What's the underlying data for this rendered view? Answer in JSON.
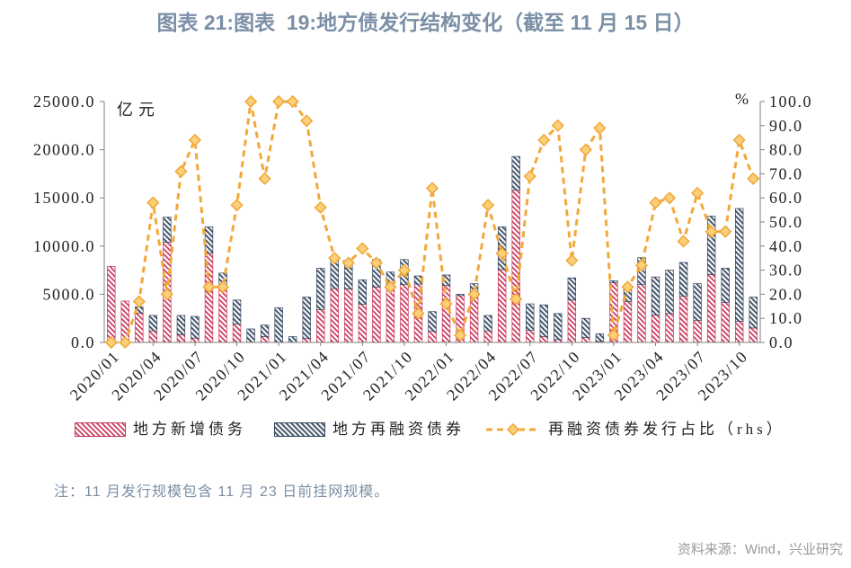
{
  "title": "图表 21:图表  19:地方债发行结构变化（截至 11 月 15 日）",
  "note": "注：11 月发行规模包含 11 月 23 日前挂网规模。",
  "source": "资料来源：Wind，兴业研究",
  "colors": {
    "title": "#7b8fa6",
    "note": "#7b8fa6",
    "source": "#9a9a9a",
    "axis": "#808080",
    "text": "#222222",
    "marker_fill": "#fbd07a"
  },
  "chart_data": {
    "type": "bar",
    "categories": [
      "2020/01",
      "2020/02",
      "2020/03",
      "2020/04",
      "2020/05",
      "2020/06",
      "2020/07",
      "2020/08",
      "2020/09",
      "2020/10",
      "2020/11",
      "2020/12",
      "2021/01",
      "2021/02",
      "2021/03",
      "2021/04",
      "2021/05",
      "2021/06",
      "2021/07",
      "2021/08",
      "2021/09",
      "2021/10",
      "2021/11",
      "2021/12",
      "2022/01",
      "2022/02",
      "2022/03",
      "2022/04",
      "2022/05",
      "2022/06",
      "2022/07",
      "2022/08",
      "2022/09",
      "2022/10",
      "2022/11",
      "2022/12",
      "2023/01",
      "2023/02",
      "2023/03",
      "2023/04",
      "2023/05",
      "2023/06",
      "2023/07",
      "2023/08",
      "2023/09",
      "2023/10",
      "2023/11"
    ],
    "x_tick_labels": [
      "2020/01",
      "2020/04",
      "2020/07",
      "2020/10",
      "2021/01",
      "2021/04",
      "2021/07",
      "2021/10",
      "2022/01",
      "2022/04",
      "2022/07",
      "2022/10",
      "2023/01",
      "2023/04",
      "2023/07",
      "2023/10"
    ],
    "series": [
      {
        "name": "地方新增债务",
        "type": "bar",
        "stacked": true,
        "axis": "left",
        "color": "#c8375a",
        "values": [
          7900,
          4300,
          3050,
          1200,
          10400,
          800,
          450,
          9250,
          5550,
          1900,
          0,
          600,
          0,
          0,
          400,
          3400,
          5600,
          5550,
          3950,
          5750,
          5600,
          6000,
          6050,
          1150,
          5900,
          4850,
          4900,
          1200,
          7550,
          15800,
          1250,
          600,
          300,
          4400,
          500,
          100,
          6200,
          4250,
          6000,
          2850,
          3000,
          4800,
          2300,
          7050,
          4150,
          2200,
          1500
        ]
      },
      {
        "name": "地方再融资债券",
        "type": "bar",
        "stacked": true,
        "axis": "left",
        "color": "#34465e",
        "values": [
          0,
          0,
          650,
          1600,
          2600,
          2000,
          2250,
          2750,
          1650,
          2500,
          1400,
          1200,
          3600,
          600,
          4300,
          4300,
          3000,
          2750,
          2550,
          2850,
          1700,
          2600,
          850,
          2050,
          1100,
          150,
          1200,
          1600,
          4450,
          3500,
          2750,
          3300,
          2700,
          2300,
          2000,
          800,
          200,
          1250,
          2800,
          3950,
          4500,
          3500,
          3800,
          6050,
          3550,
          11700,
          3200
        ]
      },
      {
        "name": "再融资债券发行占比（rhs）",
        "type": "line",
        "axis": "right",
        "dashed": true,
        "marker": "diamond",
        "color": "#f2a93b",
        "values": [
          0,
          0,
          17,
          58,
          20,
          71,
          84,
          23,
          23,
          57,
          100,
          68,
          100,
          100,
          92,
          56,
          35,
          33,
          39,
          33,
          23,
          30,
          12,
          64,
          16,
          3,
          20,
          57,
          37,
          18,
          69,
          84,
          90,
          34,
          80,
          89,
          3,
          23,
          32,
          58,
          60,
          42,
          62,
          46,
          46,
          84,
          68
        ]
      }
    ],
    "y_left": {
      "label": "亿元",
      "ylim": [
        0,
        25000
      ],
      "tick_labels": [
        "0.0",
        "5000.0",
        "10000.0",
        "15000.0",
        "20000.0",
        "25000.0"
      ]
    },
    "y_right": {
      "label": "%",
      "ylim": [
        0,
        100
      ],
      "tick_labels": [
        "0.0",
        "10.0",
        "20.0",
        "30.0",
        "40.0",
        "50.0",
        "60.0",
        "70.0",
        "80.0",
        "90.0",
        "100.0"
      ]
    },
    "grid": false,
    "legend": "bottom"
  }
}
